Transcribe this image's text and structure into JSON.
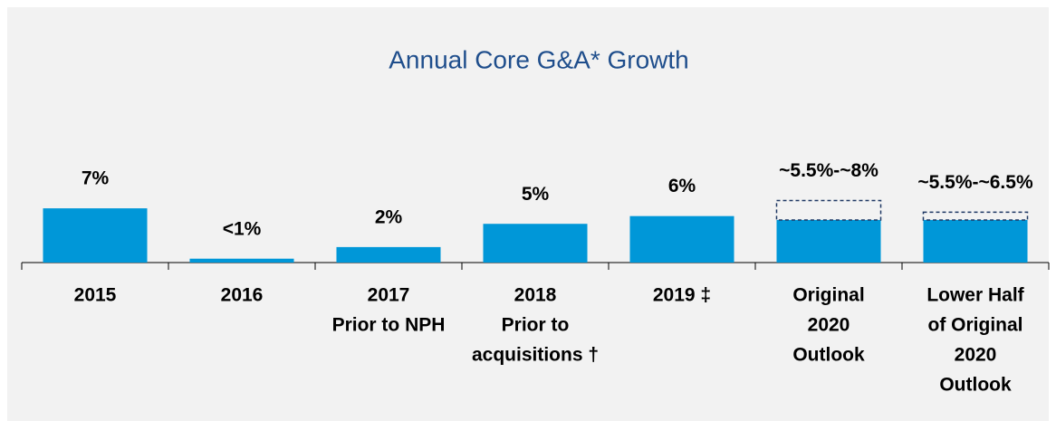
{
  "chart_data": {
    "type": "bar",
    "title": "Annual Core G&A* Growth",
    "categories": [
      [
        "2015"
      ],
      [
        "2016"
      ],
      [
        "2017",
        "Prior to NPH"
      ],
      [
        "2018",
        "Prior to",
        "acquisitions †"
      ],
      [
        "2019 ‡"
      ],
      [
        "Original",
        "2020",
        "Outlook"
      ],
      [
        "Lower Half",
        "of Original",
        "2020",
        "Outlook"
      ]
    ],
    "values": [
      7,
      0.5,
      2,
      5,
      6,
      5.5,
      5.5
    ],
    "upper": [
      null,
      null,
      null,
      null,
      null,
      8,
      6.5
    ],
    "value_labels": [
      "7%",
      "<1%",
      "2%",
      "5%",
      "6%",
      "~5.5%-~8%",
      "~5.5%-~6.5%"
    ],
    "color": "#0097d8",
    "range_color": "#1f3864",
    "ylim": [
      0,
      9
    ]
  }
}
